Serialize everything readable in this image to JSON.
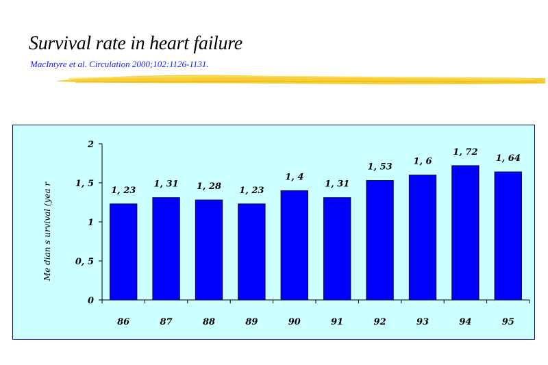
{
  "slide": {
    "title": "Survival rate in heart failure",
    "citation": "MacIntyre et al. Circulation 2000;102:1126-1131."
  },
  "colors": {
    "panel_background": "#ccffff",
    "panel_border": "#000080",
    "bar_fill": "#0000ff",
    "bar_stroke": "#000033",
    "citation_text": "#1a1aff",
    "highlight_stroke": "#f5c518"
  },
  "chart_data": {
    "type": "bar",
    "title": "",
    "xlabel": "",
    "ylabel": "Me dian  s urvival  (yea r",
    "categories": [
      "86",
      "87",
      "88",
      "89",
      "90",
      "91",
      "92",
      "93",
      "94",
      "95"
    ],
    "series": [
      {
        "values": [
          1.23,
          1.31,
          1.28,
          1.23,
          1.4,
          1.31,
          1.53,
          1.6,
          1.72,
          1.64
        ],
        "data_labels": [
          "1, 23",
          "1, 31",
          "1, 28",
          "1, 23",
          "1, 4",
          "1, 31",
          "1, 53",
          "1, 6",
          "1, 72",
          "1, 64"
        ]
      }
    ],
    "yticks": [
      0,
      0.5,
      1,
      1.5,
      2
    ],
    "ytick_labels": [
      "0",
      "0, 5",
      "1",
      "1, 5",
      "2"
    ],
    "ylim": [
      0,
      2
    ],
    "grid": false,
    "legend": "none"
  }
}
